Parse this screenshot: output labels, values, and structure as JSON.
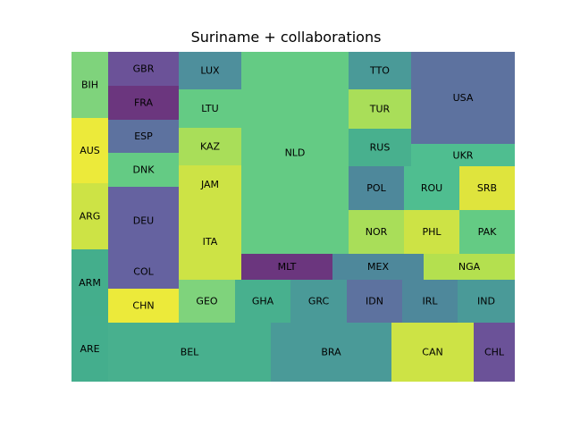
{
  "chart_data": {
    "type": "treemap",
    "title": "Suriname + collaborations",
    "cells": [
      {
        "label": "BIH",
        "color": "#7fd37c"
      },
      {
        "label": "AUS",
        "color": "#ecea3a"
      },
      {
        "label": "ARG",
        "color": "#cde345"
      },
      {
        "label": "ARM",
        "color": "#44ae8c"
      },
      {
        "label": "ARE",
        "color": "#44ae8d"
      },
      {
        "label": "GBR",
        "color": "#6b5298"
      },
      {
        "label": "FRA",
        "color": "#6b367e"
      },
      {
        "label": "ESP",
        "color": "#5d729f"
      },
      {
        "label": "DNK",
        "color": "#64cb84"
      },
      {
        "label": "DEU",
        "color": "#6562a0"
      },
      {
        "label": "COL",
        "color": "#6562a0"
      },
      {
        "label": "CHN",
        "color": "#ecea3a"
      },
      {
        "label": "LUX",
        "color": "#4e8f9c"
      },
      {
        "label": "LTU",
        "color": "#64cb84"
      },
      {
        "label": "KAZ",
        "color": "#a9de59"
      },
      {
        "label": "JAM",
        "color": "#cde345"
      },
      {
        "label": "ITA",
        "color": "#cde345"
      },
      {
        "label": "NLD",
        "color": "#64cb84"
      },
      {
        "label": "TTO",
        "color": "#4a9a98"
      },
      {
        "label": "TUR",
        "color": "#a9de59"
      },
      {
        "label": "RUS",
        "color": "#48b08e"
      },
      {
        "label": "USA",
        "color": "#5d729f"
      },
      {
        "label": "UKR",
        "color": "#4fbe90"
      },
      {
        "label": "POL",
        "color": "#4e889b"
      },
      {
        "label": "ROU",
        "color": "#4fbe90"
      },
      {
        "label": "SRB",
        "color": "#dfe43d"
      },
      {
        "label": "NOR",
        "color": "#a9de59"
      },
      {
        "label": "PHL",
        "color": "#cde345"
      },
      {
        "label": "PAK",
        "color": "#64cb84"
      },
      {
        "label": "MLT",
        "color": "#6b367e"
      },
      {
        "label": "MEX",
        "color": "#4e889b"
      },
      {
        "label": "NGA",
        "color": "#b4e04f"
      },
      {
        "label": "GEO",
        "color": "#7fd37c"
      },
      {
        "label": "GHA",
        "color": "#48b08e"
      },
      {
        "label": "GRC",
        "color": "#4a9a98"
      },
      {
        "label": "IDN",
        "color": "#5d729f"
      },
      {
        "label": "IRL",
        "color": "#4e889b"
      },
      {
        "label": "IND",
        "color": "#4a9a98"
      },
      {
        "label": "BEL",
        "color": "#48b08e"
      },
      {
        "label": "BRA",
        "color": "#4a9a98"
      },
      {
        "label": "CAN",
        "color": "#cde345"
      },
      {
        "label": "CHL",
        "color": "#6b5298"
      }
    ]
  }
}
